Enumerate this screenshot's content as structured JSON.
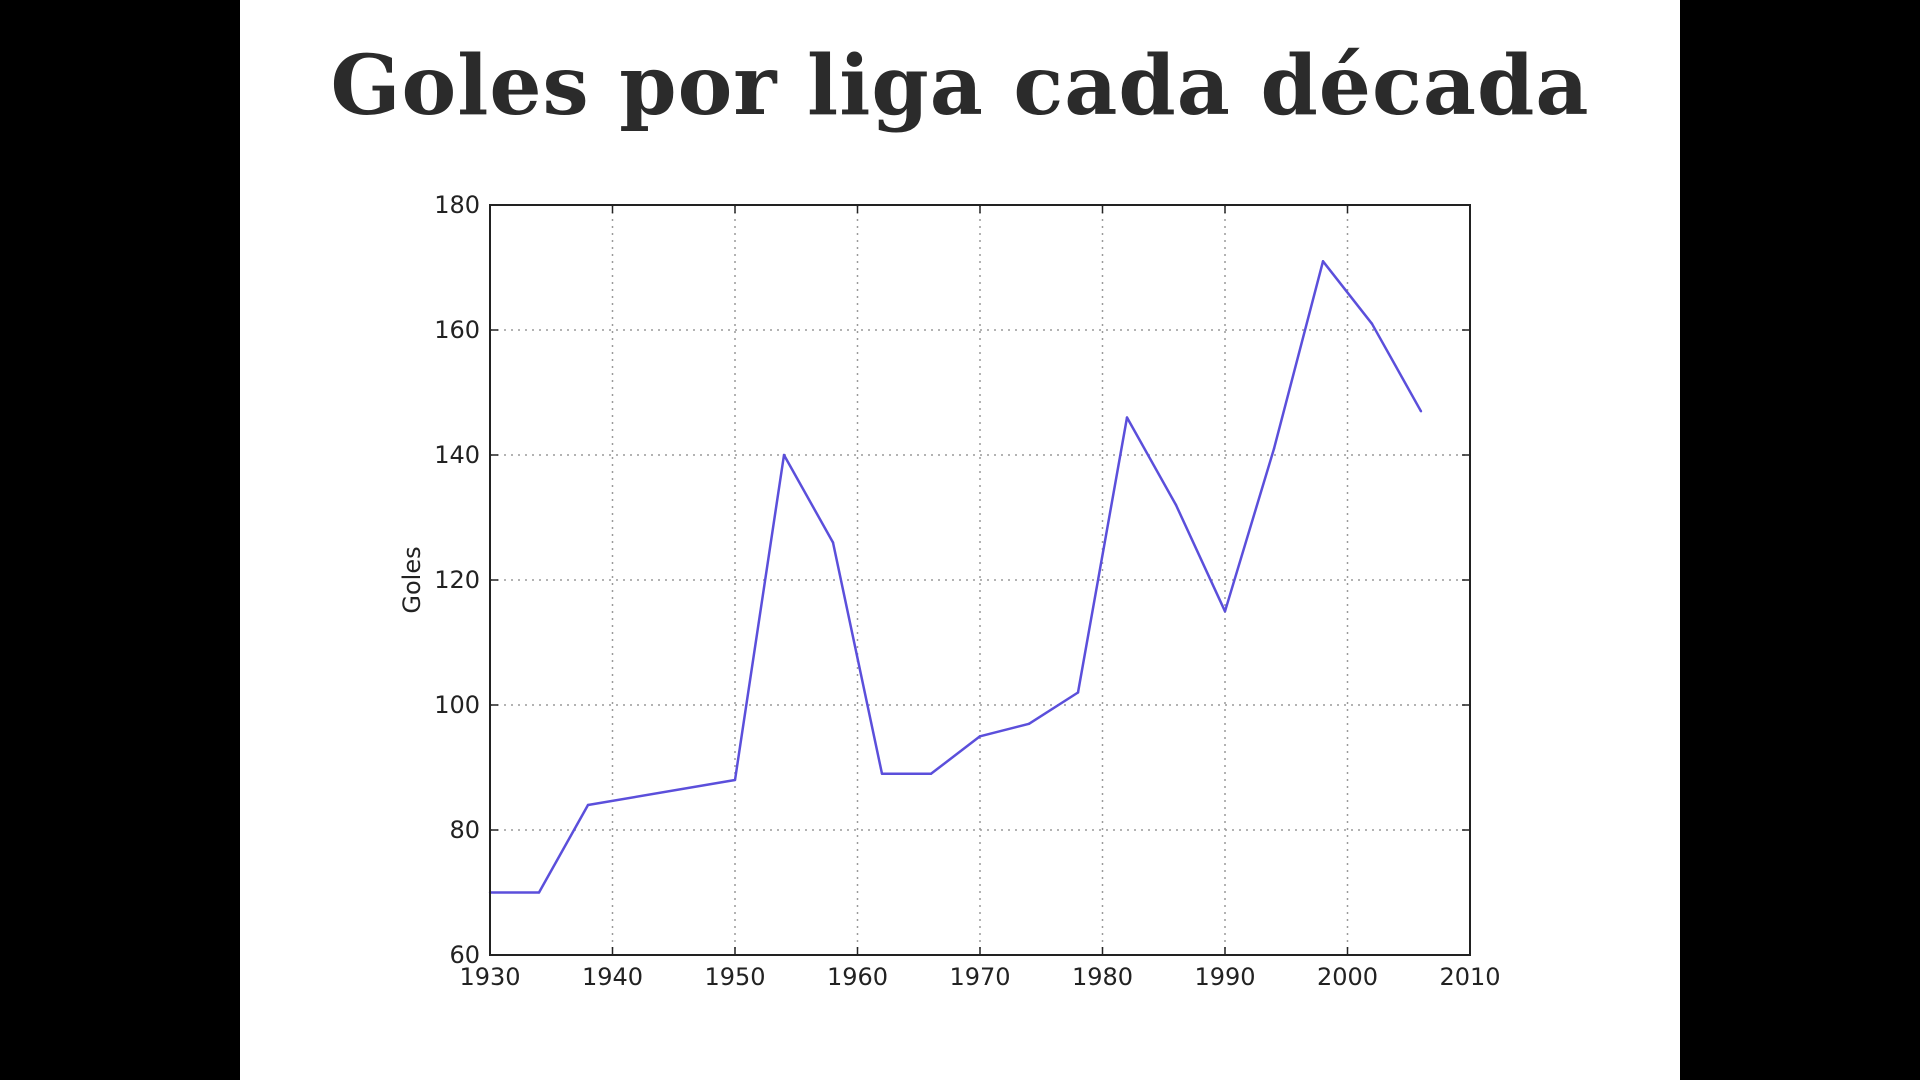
{
  "slide": {
    "title": "Goles por liga cada década"
  },
  "chart_data": {
    "type": "line",
    "title": "Goles por liga cada década",
    "xlabel": "",
    "ylabel": "Goles",
    "xlim": [
      1930,
      2010
    ],
    "ylim": [
      60,
      180
    ],
    "xticks": [
      1930,
      1940,
      1950,
      1960,
      1970,
      1980,
      1990,
      2000,
      2010
    ],
    "yticks": [
      60,
      80,
      100,
      120,
      140,
      160,
      180
    ],
    "grid": true,
    "line_color": "#5b4fdb",
    "series": [
      {
        "x": [
          1930,
          1934,
          1938,
          1950,
          1954,
          1958,
          1962,
          1966,
          1970,
          1974,
          1978,
          1982,
          1986,
          1990,
          1994,
          1998,
          2002,
          2006
        ],
        "values": [
          70,
          70,
          84,
          88,
          140,
          126,
          89,
          89,
          95,
          97,
          102,
          146,
          132,
          115,
          141,
          171,
          161,
          147
        ]
      }
    ]
  }
}
